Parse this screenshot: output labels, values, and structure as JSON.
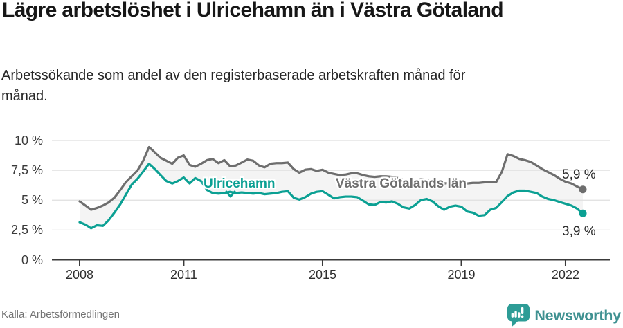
{
  "chart_data": {
    "type": "line",
    "title": "Lägre arbetslöshet i Ulricehamn än i Västra Götaland",
    "subtitle": "Arbetssökande som andel av den registerbaserade arbetskraften månad för månad.",
    "xlabel": "",
    "ylabel": "",
    "grid": "horizontal",
    "legend_position": "inline-labels",
    "ylim": [
      0,
      10.9
    ],
    "xlim": [
      2007.2,
      2023.3
    ],
    "fill_between_color": "#f4f4f4",
    "gridline_color": "#dfdfdf",
    "axis_color": "#3a3a3a",
    "yticks": [
      {
        "value": 10,
        "label": "10 %"
      },
      {
        "value": 7.5,
        "label": "7,5 %"
      },
      {
        "value": 5,
        "label": "5 %"
      },
      {
        "value": 2.5,
        "label": "2,5 %"
      },
      {
        "value": 0,
        "label": "0 %"
      }
    ],
    "xticks": [
      {
        "value": 2008,
        "label": "2008"
      },
      {
        "value": 2011,
        "label": "2011"
      },
      {
        "value": 2015,
        "label": "2015"
      },
      {
        "value": 2019,
        "label": "2019"
      },
      {
        "value": 2022,
        "label": "2022"
      }
    ],
    "x_years": [
      2008,
      2008.17,
      2008.33,
      2008.5,
      2008.67,
      2008.83,
      2009,
      2009.17,
      2009.33,
      2009.5,
      2009.67,
      2009.83,
      2010,
      2010.17,
      2010.33,
      2010.5,
      2010.67,
      2010.83,
      2011,
      2011.17,
      2011.33,
      2011.5,
      2011.67,
      2011.83,
      2012,
      2012.17,
      2012.33,
      2012.5,
      2012.67,
      2012.83,
      2013,
      2013.17,
      2013.33,
      2013.5,
      2013.67,
      2013.83,
      2014,
      2014.17,
      2014.33,
      2014.5,
      2014.67,
      2014.83,
      2015,
      2015.17,
      2015.33,
      2015.5,
      2015.67,
      2015.83,
      2016,
      2016.17,
      2016.33,
      2016.5,
      2016.67,
      2016.83,
      2017,
      2017.17,
      2017.33,
      2017.5,
      2017.67,
      2017.83,
      2018,
      2018.17,
      2018.33,
      2018.5,
      2018.67,
      2018.83,
      2019,
      2019.17,
      2019.33,
      2019.5,
      2019.67,
      2019.83,
      2020,
      2020.17,
      2020.33,
      2020.5,
      2020.67,
      2020.83,
      2021,
      2021.17,
      2021.33,
      2021.5,
      2021.67,
      2021.83,
      2022,
      2022.17,
      2022.33,
      2022.5
    ],
    "series": [
      {
        "name": "Västra Götalands län",
        "color": "#6e6e6e",
        "end_label": "5,9 %",
        "end_value": 5.9,
        "values": [
          4.9,
          4.55,
          4.2,
          4.35,
          4.55,
          4.8,
          5.2,
          5.85,
          6.5,
          7.0,
          7.5,
          8.3,
          9.45,
          9.0,
          8.55,
          8.3,
          8.05,
          8.55,
          8.75,
          7.95,
          7.8,
          8.05,
          8.35,
          8.45,
          8.1,
          8.35,
          7.85,
          7.9,
          8.15,
          8.4,
          8.3,
          7.9,
          7.75,
          8.05,
          8.1,
          8.1,
          8.15,
          7.6,
          7.3,
          7.55,
          7.6,
          7.45,
          7.55,
          7.3,
          7.2,
          7.1,
          7.15,
          7.25,
          7.25,
          7.1,
          7.0,
          6.95,
          7.0,
          7.0,
          6.95,
          6.85,
          6.7,
          6.6,
          6.65,
          6.75,
          6.7,
          6.6,
          6.5,
          6.4,
          6.45,
          6.5,
          6.45,
          6.4,
          6.45,
          6.45,
          6.5,
          6.5,
          6.5,
          7.4,
          8.85,
          8.7,
          8.45,
          8.35,
          8.2,
          7.9,
          7.6,
          7.35,
          7.1,
          6.8,
          6.55,
          6.4,
          6.15,
          5.9
        ]
      },
      {
        "name": "Ulricehamn",
        "color": "#0ba093",
        "end_label": "3,9 %",
        "end_value": 3.9,
        "values": [
          3.15,
          2.95,
          2.65,
          2.9,
          2.85,
          3.3,
          3.95,
          4.65,
          5.45,
          6.3,
          6.8,
          7.4,
          8.05,
          7.6,
          7.1,
          6.6,
          6.4,
          6.6,
          6.9,
          6.4,
          6.85,
          6.6,
          5.85,
          5.6,
          5.55,
          5.6,
          5.7,
          5.6,
          5.65,
          5.6,
          5.55,
          5.6,
          5.5,
          5.55,
          5.6,
          5.7,
          5.75,
          5.2,
          5.05,
          5.25,
          5.55,
          5.7,
          5.75,
          5.45,
          5.15,
          5.25,
          5.3,
          5.3,
          5.25,
          4.95,
          4.65,
          4.6,
          4.85,
          4.8,
          4.9,
          4.7,
          4.4,
          4.3,
          4.6,
          5.0,
          5.1,
          4.9,
          4.5,
          4.2,
          4.45,
          4.55,
          4.45,
          4.05,
          3.95,
          3.7,
          3.75,
          4.2,
          4.35,
          4.85,
          5.35,
          5.65,
          5.8,
          5.8,
          5.7,
          5.6,
          5.3,
          5.1,
          5.0,
          4.85,
          4.7,
          4.55,
          4.3,
          3.9
        ]
      }
    ]
  },
  "footer": {
    "source": "Källa: Arbetsförmedlingen",
    "brand": "Newsworthy"
  }
}
